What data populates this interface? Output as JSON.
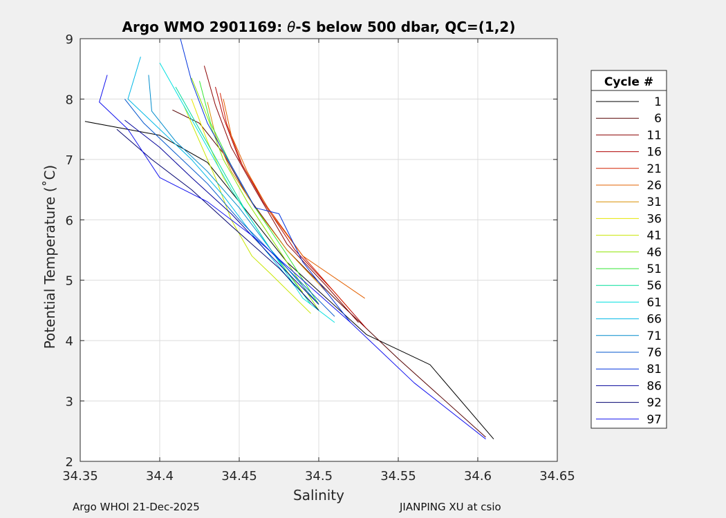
{
  "chart_data": {
    "type": "line",
    "title_prefix": "Argo WMO 2901169: ",
    "title_symbol": "θ",
    "title_suffix": "-S below 500 dbar,  QC=(1,2)",
    "xlabel": "Salinity",
    "ylabel": "Potential Temperature (˚C)",
    "xlim": [
      34.35,
      34.65
    ],
    "ylim": [
      2,
      9
    ],
    "xticks": [
      34.35,
      34.4,
      34.45,
      34.5,
      34.55,
      34.6,
      34.65
    ],
    "xtick_labels": [
      "34.35",
      "34.4",
      "34.45",
      "34.5",
      "34.55",
      "34.6",
      "34.65"
    ],
    "yticks": [
      2,
      3,
      4,
      5,
      6,
      7,
      8,
      9
    ],
    "ytick_labels": [
      "2",
      "3",
      "4",
      "5",
      "6",
      "7",
      "8",
      "9"
    ],
    "grid": true,
    "legend_title": "Cycle #",
    "legend_placement": "outside-right",
    "series": [
      {
        "name": "1",
        "color": "#000000",
        "values": [
          [
            34.353,
            7.63
          ],
          [
            34.4,
            7.4
          ],
          [
            34.43,
            6.95
          ],
          [
            34.45,
            6.3
          ],
          [
            34.48,
            5.3
          ],
          [
            34.53,
            4.1
          ],
          [
            34.57,
            3.6
          ],
          [
            34.61,
            2.37
          ]
        ]
      },
      {
        "name": "6",
        "color": "#550000",
        "values": [
          [
            34.408,
            7.82
          ],
          [
            34.425,
            7.6
          ],
          [
            34.44,
            7.1
          ],
          [
            34.455,
            6.4
          ],
          [
            34.48,
            5.5
          ],
          [
            34.51,
            4.7
          ],
          [
            34.55,
            3.7
          ],
          [
            34.605,
            2.4
          ]
        ]
      },
      {
        "name": "11",
        "color": "#8b0000",
        "values": [
          [
            34.428,
            8.55
          ],
          [
            34.435,
            7.9
          ],
          [
            34.445,
            7.2
          ],
          [
            34.46,
            6.5
          ],
          [
            34.48,
            5.6
          ],
          [
            34.505,
            4.9
          ],
          [
            34.525,
            4.3
          ]
        ]
      },
      {
        "name": "16",
        "color": "#b00000",
        "values": [
          [
            34.435,
            8.2
          ],
          [
            34.44,
            7.7
          ],
          [
            34.45,
            7.0
          ],
          [
            34.465,
            6.3
          ],
          [
            34.485,
            5.5
          ],
          [
            34.51,
            4.8
          ],
          [
            34.53,
            4.2
          ]
        ]
      },
      {
        "name": "21",
        "color": "#d42000",
        "values": [
          [
            34.438,
            8.1
          ],
          [
            34.442,
            7.6
          ],
          [
            34.452,
            6.9
          ],
          [
            34.468,
            6.2
          ],
          [
            34.49,
            5.4
          ],
          [
            34.52,
            4.5
          ]
        ]
      },
      {
        "name": "26",
        "color": "#e36000",
        "values": [
          [
            34.44,
            8.0
          ],
          [
            34.445,
            7.4
          ],
          [
            34.455,
            6.8
          ],
          [
            34.47,
            6.1
          ],
          [
            34.49,
            5.4
          ],
          [
            34.529,
            4.7
          ]
        ]
      },
      {
        "name": "31",
        "color": "#d99000",
        "values": [
          [
            34.43,
            7.95
          ],
          [
            34.435,
            7.4
          ],
          [
            34.445,
            6.8
          ],
          [
            34.46,
            6.2
          ],
          [
            34.48,
            5.5
          ],
          [
            34.505,
            4.8
          ]
        ]
      },
      {
        "name": "36",
        "color": "#e6e600",
        "values": [
          [
            34.42,
            8.0
          ],
          [
            34.43,
            7.3
          ],
          [
            34.44,
            6.7
          ],
          [
            34.455,
            6.1
          ],
          [
            34.47,
            5.5
          ],
          [
            34.49,
            4.8
          ]
        ]
      },
      {
        "name": "41",
        "color": "#c8e600",
        "values": [
          [
            34.415,
            7.9
          ],
          [
            34.425,
            7.3
          ],
          [
            34.435,
            6.7
          ],
          [
            34.445,
            6.0
          ],
          [
            34.458,
            5.4
          ],
          [
            34.47,
            5.1
          ],
          [
            34.495,
            4.45
          ]
        ]
      },
      {
        "name": "46",
        "color": "#8ee600",
        "values": [
          [
            34.42,
            8.35
          ],
          [
            34.43,
            7.7
          ],
          [
            34.44,
            7.0
          ],
          [
            34.455,
            6.3
          ],
          [
            34.475,
            5.5
          ],
          [
            34.5,
            4.5
          ]
        ]
      },
      {
        "name": "51",
        "color": "#33e633",
        "values": [
          [
            34.425,
            8.3
          ],
          [
            34.432,
            7.6
          ],
          [
            34.445,
            6.9
          ],
          [
            34.46,
            6.2
          ],
          [
            34.478,
            5.5
          ],
          [
            34.5,
            4.6
          ]
        ]
      },
      {
        "name": "56",
        "color": "#00dd99",
        "values": [
          [
            34.41,
            8.2
          ],
          [
            34.425,
            7.5
          ],
          [
            34.44,
            6.8
          ],
          [
            34.455,
            6.1
          ],
          [
            34.47,
            5.5
          ],
          [
            34.495,
            4.6
          ]
        ]
      },
      {
        "name": "61",
        "color": "#00e0e0",
        "values": [
          [
            34.4,
            8.6
          ],
          [
            34.415,
            7.9
          ],
          [
            34.43,
            7.2
          ],
          [
            34.445,
            6.5
          ],
          [
            34.465,
            5.7
          ],
          [
            34.49,
            4.7
          ],
          [
            34.51,
            4.3
          ]
        ]
      },
      {
        "name": "66",
        "color": "#00b8e6",
        "values": [
          [
            34.388,
            8.7
          ],
          [
            34.38,
            8.0
          ],
          [
            34.4,
            7.5
          ],
          [
            34.42,
            7.0
          ],
          [
            34.44,
            6.4
          ],
          [
            34.46,
            5.7
          ],
          [
            34.485,
            4.9
          ]
        ]
      },
      {
        "name": "71",
        "color": "#008ccc",
        "values": [
          [
            34.393,
            8.4
          ],
          [
            34.395,
            7.8
          ],
          [
            34.41,
            7.3
          ],
          [
            34.43,
            6.8
          ],
          [
            34.45,
            6.2
          ],
          [
            34.47,
            5.5
          ],
          [
            34.5,
            4.6
          ]
        ]
      },
      {
        "name": "76",
        "color": "#0055cc",
        "values": [
          [
            34.378,
            8.0
          ],
          [
            34.39,
            7.6
          ],
          [
            34.41,
            7.1
          ],
          [
            34.43,
            6.6
          ],
          [
            34.45,
            6.0
          ],
          [
            34.48,
            5.2
          ],
          [
            34.51,
            4.4
          ]
        ]
      },
      {
        "name": "81",
        "color": "#0033dd",
        "values": [
          [
            34.413,
            9.0
          ],
          [
            34.42,
            8.3
          ],
          [
            34.43,
            7.6
          ],
          [
            34.445,
            6.9
          ],
          [
            34.46,
            6.2
          ],
          [
            34.475,
            6.1
          ],
          [
            34.49,
            5.3
          ],
          [
            34.52,
            4.3
          ]
        ]
      },
      {
        "name": "86",
        "color": "#000099",
        "values": [
          [
            34.378,
            7.65
          ],
          [
            34.4,
            7.2
          ],
          [
            34.42,
            6.7
          ],
          [
            34.445,
            6.1
          ],
          [
            34.47,
            5.4
          ],
          [
            34.5,
            4.6
          ]
        ]
      },
      {
        "name": "92",
        "color": "#00006e",
        "values": [
          [
            34.373,
            7.5
          ],
          [
            34.395,
            7.0
          ],
          [
            34.42,
            6.5
          ],
          [
            34.445,
            5.9
          ],
          [
            34.475,
            5.2
          ],
          [
            34.5,
            4.5
          ]
        ]
      },
      {
        "name": "97",
        "color": "#1010ee",
        "values": [
          [
            34.367,
            8.4
          ],
          [
            34.362,
            7.95
          ],
          [
            34.38,
            7.5
          ],
          [
            34.4,
            6.7
          ],
          [
            34.43,
            6.3
          ],
          [
            34.46,
            5.7
          ],
          [
            34.49,
            5.0
          ],
          [
            34.52,
            4.3
          ],
          [
            34.56,
            3.3
          ],
          [
            34.605,
            2.37
          ]
        ]
      }
    ]
  },
  "footer": {
    "left": "Argo WHOI 21-Dec-2025",
    "right": "JIANPING XU at csio"
  }
}
